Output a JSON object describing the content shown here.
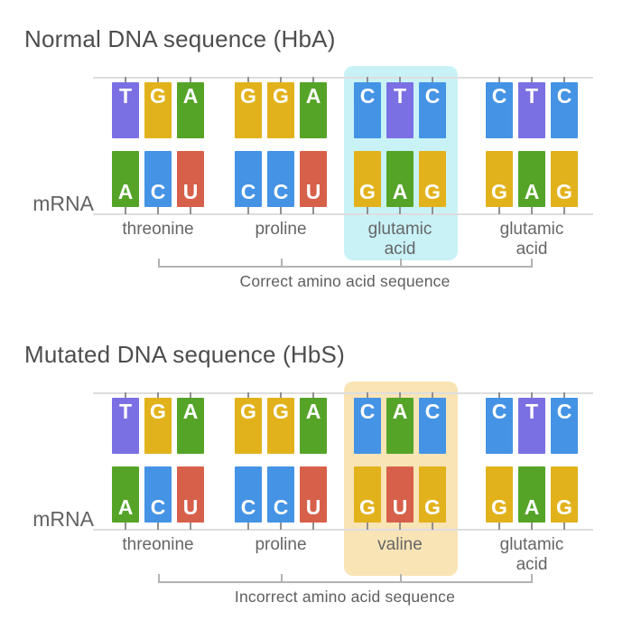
{
  "palette": {
    "T": "#7b70e3",
    "G": "#e2b21c",
    "A": "#55a428",
    "C": "#4493e5",
    "U": "#d7604a"
  },
  "lines_color": "#dedede",
  "sections": [
    {
      "title": "Normal DNA sequence (HbA)",
      "mrna_label": "mRNA",
      "caption": "Correct amino acid sequence",
      "highlight_color": "#c9f2f7",
      "highlighted_codon": 2,
      "codons": [
        {
          "dna": [
            "T",
            "G",
            "A"
          ],
          "mrna": [
            "A",
            "C",
            "U"
          ],
          "amino_acid": "threonine"
        },
        {
          "dna": [
            "G",
            "G",
            "A"
          ],
          "mrna": [
            "C",
            "C",
            "U"
          ],
          "amino_acid": "proline"
        },
        {
          "dna": [
            "C",
            "T",
            "C"
          ],
          "mrna": [
            "G",
            "A",
            "G"
          ],
          "amino_acid": "glutamic acid"
        },
        {
          "dna": [
            "C",
            "T",
            "C"
          ],
          "mrna": [
            "G",
            "A",
            "G"
          ],
          "amino_acid": "glutamic acid"
        }
      ]
    },
    {
      "title": "Mutated DNA sequence (HbS)",
      "mrna_label": "mRNA",
      "caption": "Incorrect amino acid sequence",
      "highlight_color": "#f9e4b6",
      "highlighted_codon": 2,
      "codons": [
        {
          "dna": [
            "T",
            "G",
            "A"
          ],
          "mrna": [
            "A",
            "C",
            "U"
          ],
          "amino_acid": "threonine"
        },
        {
          "dna": [
            "G",
            "G",
            "A"
          ],
          "mrna": [
            "C",
            "C",
            "U"
          ],
          "amino_acid": "proline"
        },
        {
          "dna": [
            "C",
            "A",
            "C"
          ],
          "mrna": [
            "G",
            "U",
            "G"
          ],
          "amino_acid": "valine"
        },
        {
          "dna": [
            "C",
            "T",
            "C"
          ],
          "mrna": [
            "G",
            "A",
            "G"
          ],
          "amino_acid": "glutamic acid"
        }
      ]
    }
  ]
}
